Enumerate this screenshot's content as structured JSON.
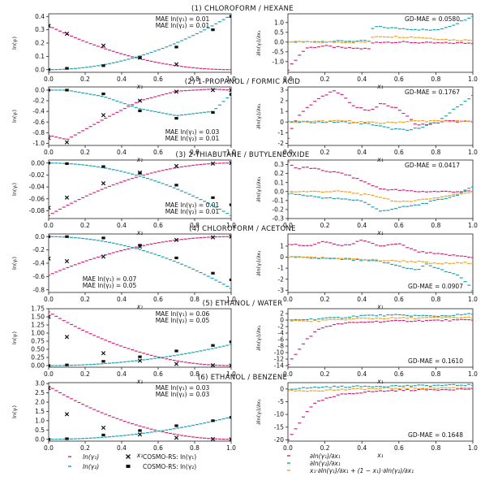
{
  "colors": {
    "pink": "#d6257a",
    "teal": "#1aa3b5",
    "orange": "#f2a11e",
    "black": "#111111",
    "axis": "#222222"
  },
  "legend": {
    "ln1": "ln(γ₁)",
    "ln2": "ln(γ₂)",
    "cosmo1": "COSMO-RS: ln(γ₁)",
    "cosmo2": "COSMO-RS: ln(γ₂)",
    "d1": "∂ln(γ₁)/∂x₁",
    "d2": "∂ln(γ₂)/∂x₁",
    "gd": "x₁·∂ln(γ₁)/∂x₁ + (1 − x₁)·∂ln(γ₂)/∂x₁"
  },
  "chart_data": [
    {
      "type": "scatter",
      "title": "(1) CHLOROFORM / HEXANE",
      "xlabel": "x₁",
      "ylabel": "ln(γᵢ)",
      "xlim": [
        0,
        1
      ],
      "ylim": [
        -0.02,
        0.42
      ],
      "yticks": [
        0.0,
        0.1,
        0.2,
        0.3,
        0.4
      ],
      "xticks": [
        0.0,
        0.2,
        0.4,
        0.6,
        0.8,
        1.0
      ],
      "mae1": "MAE ln(γ₁) = 0.01",
      "mae2": "MAE ln(γ₂) = 0.01",
      "mae_pos": "top",
      "ln1": {
        "a": 0.33,
        "b": 0.0
      },
      "ln2": {
        "a": 0.41,
        "b": 0.0
      },
      "cosmo1": {
        "x": [
          0.0,
          0.1,
          0.3,
          0.5,
          0.7
        ],
        "y": [
          0.33,
          0.27,
          0.18,
          0.09,
          0.04
        ]
      },
      "cosmo2": {
        "x": [
          0.0,
          0.1,
          0.3,
          0.5,
          0.7,
          0.9,
          1.0
        ],
        "y": [
          0.0,
          0.01,
          0.03,
          0.09,
          0.17,
          0.3,
          0.4
        ]
      },
      "deriv": {
        "title": "GD-MAE  = 0.0580",
        "title_pos": "top-right",
        "ylabel": "∂ln(γᵢ)/∂x₁",
        "ylim": [
          -1.55,
          1.45
        ],
        "yticks": [
          -1.0,
          -0.5,
          0.0,
          0.5,
          1.0
        ],
        "xticks": [
          0.0,
          0.2,
          0.4,
          0.6,
          0.8,
          1.0
        ],
        "d1": {
          "x": [
            0.0,
            0.05,
            0.1,
            0.2,
            0.3,
            0.45,
            0.46,
            0.6,
            0.8,
            1.0
          ],
          "y": [
            -1.4,
            -0.8,
            -0.3,
            -0.2,
            -0.3,
            -0.35,
            0.0,
            0.0,
            -0.05,
            -0.05
          ]
        },
        "d2": {
          "x": [
            0.0,
            0.3,
            0.45,
            0.46,
            0.6,
            0.8,
            0.9,
            1.0
          ],
          "y": [
            0.0,
            0.05,
            0.05,
            0.8,
            0.7,
            0.6,
            0.9,
            1.35
          ]
        },
        "gd": {
          "x": [
            0.0,
            0.45,
            0.46,
            0.7,
            0.9,
            1.0
          ],
          "y": [
            0.0,
            0.0,
            0.3,
            0.25,
            0.1,
            0.1
          ]
        }
      }
    },
    {
      "type": "scatter",
      "title": "(2) 1-PROPANOL / FORMIC ACID",
      "xlabel": "x₁",
      "ylabel": "ln(γᵢ)",
      "xlim": [
        0,
        1
      ],
      "ylim": [
        -1.04,
        0.06
      ],
      "yticks": [
        0.0,
        -0.2,
        -0.4,
        -0.6,
        -0.8,
        -1.0
      ],
      "xticks": [
        0.0,
        0.2,
        0.4,
        0.6,
        0.8,
        1.0
      ],
      "mae1": "MAE ln(γ₁) = 0.03",
      "mae2": "MAE ln(γ₂) = 0.01",
      "mae_pos": "bottom",
      "ln1": {
        "a": -1.87,
        "b": 1.92
      },
      "ln2": {
        "a": -1.87,
        "b": 1.92
      },
      "cosmo1": {
        "x": [
          0.0,
          0.1,
          0.3,
          0.5,
          0.7,
          0.9,
          1.0
        ],
        "y": [
          -0.9,
          -0.98,
          -0.47,
          -0.2,
          -0.03,
          0.0,
          0.0
        ]
      },
      "cosmo2": {
        "x": [
          0.0,
          0.1,
          0.3,
          0.5,
          0.7,
          0.9,
          1.0
        ],
        "y": [
          0.0,
          0.0,
          -0.07,
          -0.39,
          -0.53,
          -0.42,
          -0.08
        ]
      },
      "deriv": {
        "title": "GD-MAE  = 0.1767",
        "title_pos": "top-right",
        "ylabel": "∂ln(γᵢ)/∂x₁",
        "ylim": [
          -2.2,
          3.3
        ],
        "yticks": [
          -2,
          -1,
          0,
          1,
          2,
          3
        ],
        "xticks": [
          0.0,
          0.2,
          0.4,
          0.6,
          0.8,
          1.0
        ],
        "d1": {
          "x": [
            0.0,
            0.05,
            0.15,
            0.25,
            0.3,
            0.35,
            0.45,
            0.5,
            0.6,
            0.7,
            0.8,
            0.85,
            1.0
          ],
          "y": [
            -1.5,
            0.5,
            2.0,
            3.0,
            2.5,
            1.5,
            1.0,
            1.8,
            1.2,
            -0.3,
            -0.1,
            0.1,
            0.0
          ]
        },
        "d2": {
          "x": [
            0.0,
            0.3,
            0.45,
            0.55,
            0.65,
            0.8,
            0.9,
            1.0
          ],
          "y": [
            0.0,
            0.0,
            -0.2,
            -0.6,
            -0.8,
            -0.1,
            1.2,
            2.5
          ]
        },
        "gd": {
          "x": [
            0.0,
            0.3,
            0.5,
            0.7,
            1.0
          ],
          "y": [
            0.0,
            0.1,
            -0.1,
            0.1,
            0.05
          ]
        }
      }
    },
    {
      "type": "scatter",
      "title": "(3) 2-THIABUTANE / BUTYLENEOXIDE",
      "xlabel": "x₁",
      "ylabel": "ln(γᵢ)",
      "xlim": [
        0,
        1
      ],
      "ylim": [
        -0.093,
        0.005
      ],
      "yticks": [
        0.0,
        -0.02,
        -0.04,
        -0.06,
        -0.08
      ],
      "xticks": [
        0.0,
        0.2,
        0.4,
        0.6,
        0.8,
        1.0
      ],
      "mae1": "MAE ln(γ₁) = 0.01",
      "mae2": "MAE ln(γ₂) = 0.01",
      "mae_pos": "bottom",
      "ln1": {
        "a": -0.088,
        "b": 0.0
      },
      "ln2": {
        "a": -0.088,
        "b": 0.0
      },
      "cosmo1": {
        "x": [
          0.0,
          0.1,
          0.3,
          0.5,
          0.7,
          0.9,
          1.0
        ],
        "y": [
          -0.075,
          -0.058,
          -0.034,
          -0.016,
          -0.005,
          -0.001,
          0.0
        ]
      },
      "cosmo2": {
        "x": [
          0.0,
          0.1,
          0.3,
          0.5,
          0.7,
          0.9,
          1.0
        ],
        "y": [
          0.0,
          -0.001,
          -0.006,
          -0.017,
          -0.037,
          -0.058,
          -0.07
        ]
      },
      "deriv": {
        "title": "GD-MAE  = 0.0417",
        "title_pos": "top-right",
        "ylabel": "∂ln(γᵢ)/∂x₁",
        "ylim": [
          -0.3,
          0.35
        ],
        "yticks": [
          0.3,
          0.2,
          0.1,
          0.0,
          -0.1,
          -0.2,
          -0.3
        ],
        "xticks": [
          0.0,
          0.2,
          0.4,
          0.6,
          0.8,
          1.0
        ],
        "d1": {
          "x": [
            0.0,
            0.05,
            0.1,
            0.2,
            0.3,
            0.4,
            0.5,
            0.7,
            1.0
          ],
          "y": [
            0.33,
            0.25,
            0.27,
            0.23,
            0.2,
            0.12,
            0.03,
            0.0,
            0.0
          ]
        },
        "d2": {
          "x": [
            0.0,
            0.2,
            0.4,
            0.5,
            0.6,
            0.7,
            0.8,
            0.9,
            1.0
          ],
          "y": [
            -0.02,
            -0.07,
            -0.1,
            -0.22,
            -0.18,
            -0.15,
            -0.1,
            -0.05,
            0.05
          ]
        },
        "gd": {
          "x": [
            0.0,
            0.3,
            0.5,
            0.6,
            0.8,
            1.0
          ],
          "y": [
            0.0,
            0.0,
            -0.06,
            -0.12,
            -0.07,
            0.0
          ]
        }
      }
    },
    {
      "type": "scatter",
      "title": "(4) CHLOROFORM / ACETONE",
      "xlabel": "x₁",
      "ylabel": "ln(γᵢ)",
      "xlim": [
        0,
        1
      ],
      "ylim": [
        -0.84,
        0.04
      ],
      "yticks": [
        0.0,
        -0.2,
        -0.4,
        -0.6,
        -0.8
      ],
      "xticks": [
        0.0,
        0.2,
        0.4,
        0.6,
        0.8,
        1.0
      ],
      "mae1": "MAE ln(γ₁) = 0.07",
      "mae2": "MAE ln(γ₂) = 0.05",
      "mae_pos": "bottom-left",
      "ln1": {
        "a": -0.58,
        "b": 0.0
      },
      "ln2": {
        "a": -0.78,
        "b": 0.0
      },
      "cosmo1": {
        "x": [
          0.0,
          0.1,
          0.3,
          0.5,
          0.7,
          0.9,
          1.0
        ],
        "y": [
          -0.33,
          -0.37,
          -0.3,
          -0.15,
          -0.05,
          -0.01,
          0.0
        ]
      },
      "cosmo2": {
        "x": [
          0.0,
          0.1,
          0.3,
          0.5,
          0.7,
          0.9,
          1.0
        ],
        "y": [
          0.0,
          0.0,
          -0.02,
          -0.13,
          -0.32,
          -0.55,
          -0.65
        ]
      },
      "deriv": {
        "title": "GD-MAE  = 0.0907",
        "title_pos": "bottom-right",
        "ylabel": "∂ln(γᵢ)/∂x₁",
        "ylim": [
          -3.2,
          2.1
        ],
        "yticks": [
          1,
          0,
          -1,
          -2,
          -3
        ],
        "xticks": [
          0.0,
          0.2,
          0.4,
          0.6,
          0.8,
          1.0
        ],
        "d1": {
          "x": [
            0.0,
            0.1,
            0.2,
            0.3,
            0.4,
            0.5,
            0.6,
            0.7,
            0.8,
            1.0
          ],
          "y": [
            1.2,
            1.0,
            1.4,
            1.0,
            1.5,
            1.0,
            1.2,
            0.5,
            0.3,
            0.0
          ]
        },
        "d2": {
          "x": [
            0.0,
            0.3,
            0.5,
            0.6,
            0.7,
            0.75,
            0.8,
            0.9,
            0.95,
            1.0
          ],
          "y": [
            0.0,
            -0.2,
            -0.4,
            -0.8,
            -1.2,
            -0.6,
            -1.0,
            -1.5,
            -2.0,
            -3.0
          ]
        },
        "gd": {
          "x": [
            0.0,
            0.3,
            0.5,
            0.7,
            0.8,
            1.0
          ],
          "y": [
            0.0,
            -0.1,
            -0.3,
            -0.4,
            -0.6,
            -0.5
          ]
        }
      }
    },
    {
      "type": "scatter",
      "title": "(5) ETHANOL / WATER",
      "xlabel": "x₁",
      "ylabel": "ln(γᵢ)",
      "xlim": [
        0,
        1
      ],
      "ylim": [
        -0.05,
        1.75
      ],
      "yticks": [
        0.0,
        0.25,
        0.5,
        0.75,
        1.0,
        1.25,
        1.5,
        1.75
      ],
      "xticks": [
        0.0,
        0.2,
        0.4,
        0.6,
        0.8,
        1.0
      ],
      "mae1": "MAE ln(γ₁) = 0.06",
      "mae2": "MAE ln(γ₂) = 0.05",
      "mae_pos": "top",
      "ln1": {
        "a": 1.65,
        "b": 0.0
      },
      "ln2": {
        "a": 0.65,
        "b": 0.0
      },
      "cosmo1": {
        "x": [
          0.0,
          0.1,
          0.3,
          0.5,
          0.7,
          0.9,
          1.0
        ],
        "y": [
          1.5,
          0.88,
          0.38,
          0.15,
          0.05,
          0.01,
          0.0
        ]
      },
      "cosmo2": {
        "x": [
          0.0,
          0.1,
          0.3,
          0.5,
          0.7,
          0.9,
          1.0
        ],
        "y": [
          0.0,
          0.02,
          0.13,
          0.27,
          0.45,
          0.62,
          0.73
        ]
      },
      "deriv": {
        "title": "GD-MAE  = 0.1610",
        "title_pos": "bottom-right",
        "ylabel": "∂ln(γᵢ)/∂x₁",
        "ylim": [
          -14.5,
          3.5
        ],
        "yticks": [
          2,
          0,
          -2,
          -4,
          -6,
          -8,
          -10,
          -12,
          -14
        ],
        "xticks": [
          0.0,
          0.2,
          0.4,
          0.6,
          0.8,
          1.0
        ],
        "d1": {
          "x": [
            0.0,
            0.05,
            0.1,
            0.15,
            0.2,
            0.3,
            0.45,
            0.6,
            0.8,
            1.0
          ],
          "y": [
            -13.5,
            -10.0,
            -6.0,
            -3.5,
            -2.0,
            -1.0,
            -0.5,
            -0.3,
            -0.1,
            0.0
          ]
        },
        "d2": {
          "x": [
            0.0,
            0.1,
            0.2,
            0.3,
            0.4,
            0.6,
            0.8,
            0.9,
            1.0
          ],
          "y": [
            0.0,
            0.2,
            0.5,
            0.8,
            1.4,
            1.5,
            1.2,
            1.5,
            1.9
          ]
        },
        "gd": {
          "x": [
            0.0,
            0.1,
            0.2,
            0.4,
            0.6,
            1.0
          ],
          "y": [
            0.0,
            -0.4,
            -0.1,
            0.5,
            0.6,
            0.8
          ]
        }
      }
    },
    {
      "type": "scatter",
      "title": "(6) ETHANOL / BENZENE",
      "xlabel": "x₁",
      "ylabel": "ln(γᵢ)",
      "xlim": [
        0,
        1
      ],
      "ylim": [
        -0.1,
        3.05
      ],
      "yticks": [
        0.0,
        0.5,
        1.0,
        1.5,
        2.0,
        2.5,
        3.0
      ],
      "xticks": [
        0.0,
        0.2,
        0.4,
        0.6,
        0.8,
        1.0
      ],
      "mae1": "MAE ln(γ₁) = 0.03",
      "mae2": "MAE ln(γ₂) = 0.03",
      "mae_pos": "top",
      "ln1": {
        "a": 2.85,
        "b": 0.0
      },
      "ln2": {
        "a": 1.2,
        "b": 0.0
      },
      "cosmo1": {
        "x": [
          0.0,
          0.1,
          0.3,
          0.5,
          0.7,
          0.9,
          1.0
        ],
        "y": [
          2.75,
          1.35,
          0.62,
          0.26,
          0.08,
          0.01,
          0.0
        ]
      },
      "cosmo2": {
        "x": [
          0.0,
          0.1,
          0.3,
          0.5,
          0.7,
          0.9,
          1.0
        ],
        "y": [
          0.0,
          0.03,
          0.23,
          0.47,
          0.73,
          1.0,
          1.18
        ]
      },
      "deriv": {
        "title": "GD-MAE  = 0.1648",
        "title_pos": "bottom-right",
        "ylabel": "∂ln(γᵢ)/∂x₁",
        "ylim": [
          -20.5,
          2.5
        ],
        "yticks": [
          0,
          -5,
          -10,
          -15,
          -20
        ],
        "xticks": [
          0.0,
          0.2,
          0.4,
          0.6,
          0.8,
          1.0
        ],
        "d1": {
          "x": [
            0.0,
            0.03,
            0.06,
            0.1,
            0.15,
            0.2,
            0.3,
            0.45,
            0.6,
            0.8,
            1.0
          ],
          "y": [
            -20.0,
            -17.0,
            -13.5,
            -9.0,
            -5.5,
            -4.0,
            -2.0,
            -1.0,
            -0.5,
            -0.2,
            0.0
          ]
        },
        "d2": {
          "x": [
            0.0,
            0.2,
            0.4,
            0.6,
            0.8,
            1.0
          ],
          "y": [
            0.0,
            0.8,
            1.0,
            1.2,
            1.4,
            1.6
          ]
        },
        "gd": {
          "x": [
            0.0,
            0.2,
            0.4,
            0.6,
            1.0
          ],
          "y": [
            -0.8,
            -0.5,
            0.0,
            0.3,
            0.5
          ]
        }
      }
    }
  ]
}
